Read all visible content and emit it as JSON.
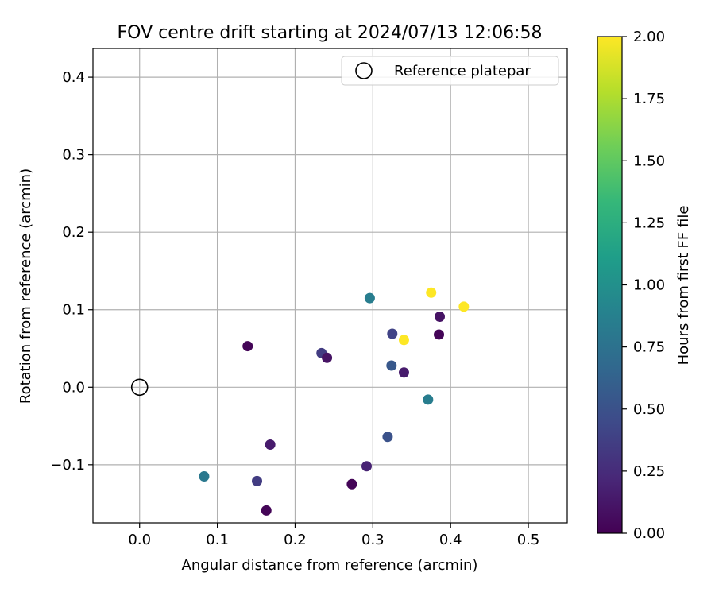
{
  "chart_data": {
    "type": "scatter",
    "title": "FOV centre drift starting at 2024/07/13 12:06:58",
    "xlabel": "Angular distance from reference (arcmin)",
    "ylabel": "Rotation from reference (arcmin)",
    "xlim": [
      -0.06,
      0.55
    ],
    "ylim": [
      -0.175,
      0.437
    ],
    "xticks": [
      "0.0",
      "0.1",
      "0.2",
      "0.3",
      "0.4",
      "0.5"
    ],
    "xtick_values": [
      0.0,
      0.1,
      0.2,
      0.3,
      0.4,
      0.5
    ],
    "yticks": [
      "−0.1",
      "0.0",
      "0.1",
      "0.2",
      "0.3",
      "0.4"
    ],
    "ytick_values": [
      -0.1,
      0.0,
      0.1,
      0.2,
      0.3,
      0.4
    ],
    "grid": true,
    "legend": {
      "placement": "top-right",
      "entries": [
        "Reference platepar"
      ]
    },
    "reference_point": {
      "x": 0.0,
      "y": 0.0
    },
    "colorbar": {
      "label": "Hours from first FF file",
      "range": [
        0.0,
        2.0
      ],
      "ticks": [
        "0.00",
        "0.25",
        "0.50",
        "0.75",
        "1.00",
        "1.25",
        "1.50",
        "1.75",
        "2.00"
      ],
      "tick_values": [
        0.0,
        0.25,
        0.5,
        0.75,
        1.0,
        1.25,
        1.5,
        1.75,
        2.0
      ],
      "colormap": [
        "#440154",
        "#482878",
        "#3e4a89",
        "#31688e",
        "#26828e",
        "#1f9e89",
        "#35b779",
        "#6ece58",
        "#b5de2b",
        "#fde725"
      ]
    },
    "points": [
      {
        "x": 0.139,
        "y": 0.053,
        "hours": 0.02
      },
      {
        "x": 0.163,
        "y": -0.159,
        "hours": 0.02
      },
      {
        "x": 0.168,
        "y": -0.074,
        "hours": 0.15
      },
      {
        "x": 0.151,
        "y": -0.121,
        "hours": 0.35
      },
      {
        "x": 0.083,
        "y": -0.115,
        "hours": 0.8
      },
      {
        "x": 0.234,
        "y": 0.044,
        "hours": 0.35
      },
      {
        "x": 0.241,
        "y": 0.038,
        "hours": 0.1
      },
      {
        "x": 0.273,
        "y": -0.125,
        "hours": 0.02
      },
      {
        "x": 0.292,
        "y": -0.102,
        "hours": 0.2
      },
      {
        "x": 0.296,
        "y": 0.115,
        "hours": 0.85
      },
      {
        "x": 0.325,
        "y": 0.069,
        "hours": 0.4
      },
      {
        "x": 0.324,
        "y": 0.028,
        "hours": 0.55
      },
      {
        "x": 0.319,
        "y": -0.064,
        "hours": 0.5
      },
      {
        "x": 0.34,
        "y": 0.019,
        "hours": 0.15
      },
      {
        "x": 0.34,
        "y": 0.061,
        "hours": 2.0
      },
      {
        "x": 0.375,
        "y": 0.122,
        "hours": 2.0
      },
      {
        "x": 0.371,
        "y": -0.016,
        "hours": 0.85
      },
      {
        "x": 0.386,
        "y": 0.091,
        "hours": 0.1
      },
      {
        "x": 0.385,
        "y": 0.068,
        "hours": 0.02
      },
      {
        "x": 0.417,
        "y": 0.104,
        "hours": 2.0
      }
    ]
  }
}
